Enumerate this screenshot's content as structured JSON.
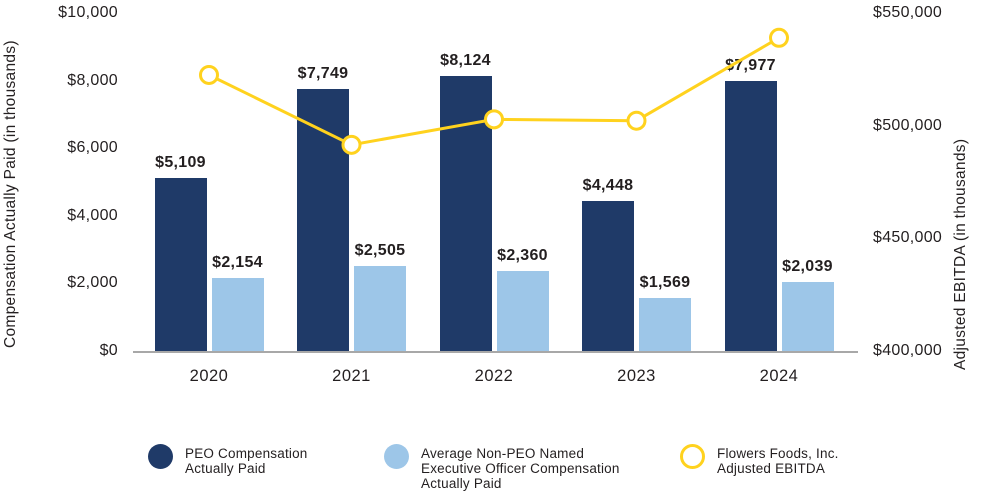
{
  "chart_data": {
    "type": "bar+line",
    "categories": [
      "2020",
      "2021",
      "2022",
      "2023",
      "2024"
    ],
    "series": [
      {
        "name": "PEO Compensation Actually Paid",
        "type": "bar",
        "axis": "left",
        "color": "#1f3a68",
        "values": [
          5109,
          7749,
          8124,
          4448,
          7977
        ],
        "labels": [
          "$5,109",
          "$7,749",
          "$8,124",
          "$4,448",
          "$7,977"
        ]
      },
      {
        "name": "Average Non-PEO Named Executive Officer Compensation Actually Paid",
        "type": "bar",
        "axis": "left",
        "color": "#9dc6e8",
        "values": [
          2154,
          2505,
          2360,
          1569,
          2039
        ],
        "labels": [
          "$2,154",
          "$2,505",
          "$2,360",
          "$1,569",
          "$2,039"
        ]
      },
      {
        "name": "Flowers Foods, Inc. Adjusted EBITDA",
        "type": "line",
        "axis": "right",
        "color": "#ffd21e",
        "marker": "open-circle",
        "values": [
          522500,
          491500,
          502800,
          502200,
          539000
        ],
        "values_note": "estimated from plot position; no data labels shown on line"
      }
    ],
    "left_axis": {
      "title": "Compensation Actually Paid (in thousands)",
      "range": [
        0,
        10000
      ],
      "tick_values": [
        10000,
        8000,
        6000,
        4000,
        2000,
        0
      ],
      "tick_labels": [
        "$10,000",
        "$8,000",
        "$6,000",
        "$4,000",
        "$2,000",
        "$0"
      ]
    },
    "right_axis": {
      "title": "Adjusted EBITDA (in thousands)",
      "range": [
        400000,
        550000
      ],
      "tick_values": [
        550000,
        500000,
        450000,
        400000
      ],
      "tick_labels": [
        "$550,000",
        "$500,000",
        "$450,000",
        "$400,000"
      ]
    },
    "grid": "off",
    "legend_position": "bottom"
  },
  "legend": {
    "items": [
      {
        "label": "PEO Compensation\nActually Paid",
        "color": "#1f3a68",
        "style": "filled"
      },
      {
        "label": "Average Non-PEO Named\nExecutive Officer Compensation\nActually Paid",
        "color": "#9dc6e8",
        "style": "filled"
      },
      {
        "label": "Flowers Foods, Inc.\nAdjusted EBITDA",
        "color": "#ffd21e",
        "style": "ring"
      }
    ]
  },
  "colors": {
    "text": "#231f20",
    "axis_line": "#a8a8a8",
    "background": "#ffffff"
  }
}
